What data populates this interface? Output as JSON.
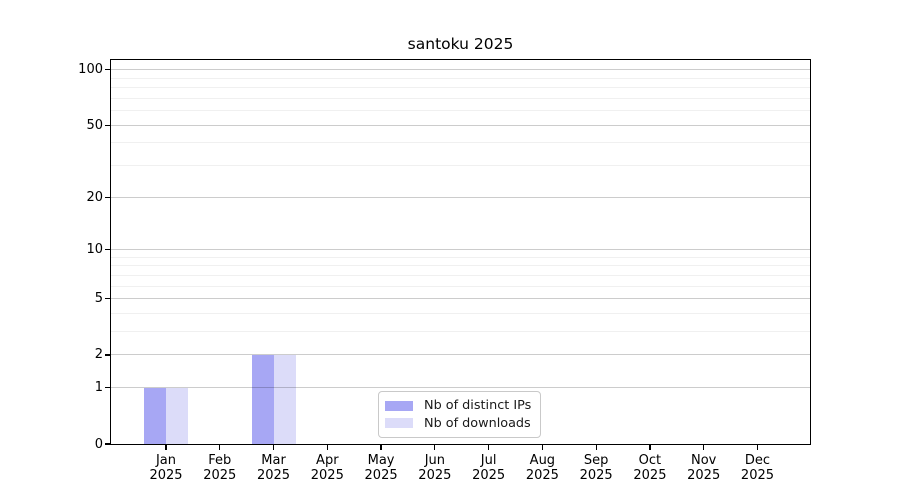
{
  "title": "santoku 2025",
  "chart_data": {
    "type": "bar",
    "title": "santoku 2025",
    "categories": [
      "Jan 2025",
      "Feb 2025",
      "Mar 2025",
      "Apr 2025",
      "May 2025",
      "Jun 2025",
      "Jul 2025",
      "Aug 2025",
      "Sep 2025",
      "Oct 2025",
      "Nov 2025",
      "Dec 2025"
    ],
    "series": [
      {
        "name": "Nb of distinct IPs",
        "color": "#a7a7f4",
        "values": [
          1,
          0,
          2,
          0,
          0,
          0,
          0,
          0,
          0,
          0,
          0,
          0
        ]
      },
      {
        "name": "Nb of downloads",
        "color": "#dcdcf9",
        "values": [
          1,
          0,
          2,
          0,
          0,
          0,
          0,
          0,
          0,
          0,
          0,
          0
        ]
      }
    ],
    "xlabel": "",
    "ylabel": "",
    "yscale": "log1p",
    "ylim": [
      0,
      113
    ],
    "y_ticks_major": [
      0,
      1,
      2,
      5,
      10,
      20,
      50,
      100
    ],
    "y_ticks_minor": [
      3,
      4,
      6,
      7,
      8,
      9,
      30,
      40,
      60,
      70,
      80,
      90
    ],
    "grid": "on",
    "grid_above_bars": true,
    "legend_position": "inside lower center",
    "spine_color": "#000000",
    "major_grid_color": "#cccccc",
    "minor_grid_color": "#f0f0f0"
  }
}
